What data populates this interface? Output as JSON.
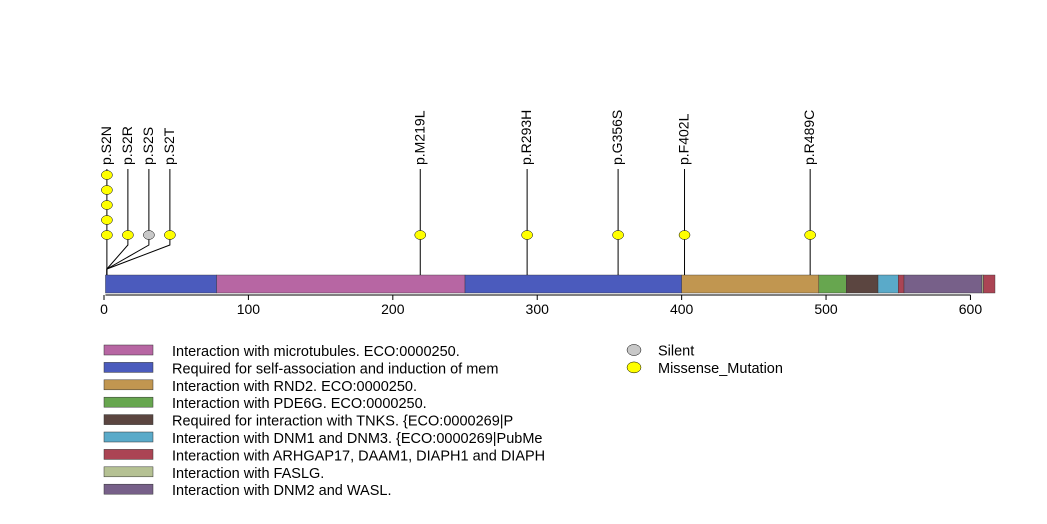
{
  "chart_data": {
    "type": "lollipop",
    "x_axis": {
      "min": 0,
      "max": 617,
      "ticks": [
        0,
        100,
        200,
        300,
        400,
        500,
        600
      ]
    },
    "protein_length": 617,
    "domains": [
      {
        "start": 1,
        "end": 78,
        "color": "#4b5bbd",
        "legend": 1
      },
      {
        "start": 78,
        "end": 250,
        "color": "#b766a3",
        "legend": 0
      },
      {
        "start": 250,
        "end": 400,
        "color": "#4b5bbd",
        "legend": 1
      },
      {
        "start": 400,
        "end": 495,
        "color": "#c19650",
        "legend": 2
      },
      {
        "start": 495,
        "end": 514,
        "color": "#67a64f",
        "legend": 3
      },
      {
        "start": 514,
        "end": 536,
        "color": "#5b4540",
        "legend": 4
      },
      {
        "start": 536,
        "end": 550,
        "color": "#5aaac9",
        "legend": 5
      },
      {
        "start": 550,
        "end": 554,
        "color": "#ab4454",
        "legend": 6
      },
      {
        "start": 554,
        "end": 608,
        "color": "#776089",
        "legend": 8
      },
      {
        "start": 608,
        "end": 609,
        "color": "#b5c193",
        "legend": 7
      },
      {
        "start": 609,
        "end": 617,
        "color": "#ab4454",
        "legend": 6
      }
    ],
    "mutations": [
      {
        "label": "p.S2N",
        "position": 2,
        "count": 5,
        "type": "Missense_Mutation"
      },
      {
        "label": "p.S2R",
        "position": 2,
        "count": 1,
        "type": "Missense_Mutation"
      },
      {
        "label": "p.S2S",
        "position": 2,
        "count": 1,
        "type": "Silent"
      },
      {
        "label": "p.S2T",
        "position": 2,
        "count": 1,
        "type": "Missense_Mutation"
      },
      {
        "label": "p.M219L",
        "position": 219,
        "count": 1,
        "type": "Missense_Mutation"
      },
      {
        "label": "p.R293H",
        "position": 293,
        "count": 1,
        "type": "Missense_Mutation"
      },
      {
        "label": "p.G356S",
        "position": 356,
        "count": 1,
        "type": "Missense_Mutation"
      },
      {
        "label": "p.F402L",
        "position": 402,
        "count": 1,
        "type": "Missense_Mutation"
      },
      {
        "label": "p.R489C",
        "position": 489,
        "count": 1,
        "type": "Missense_Mutation"
      }
    ],
    "domain_legend": [
      {
        "label": "Interaction with microtubules. ECO:0000250.",
        "color": "#b766a3"
      },
      {
        "label": "Required for self-association and induction of mem",
        "color": "#4b5bbd"
      },
      {
        "label": "Interaction with RND2. ECO:0000250.",
        "color": "#c19650"
      },
      {
        "label": "Interaction with PDE6G. ECO:0000250.",
        "color": "#67a64f"
      },
      {
        "label": "Required for interaction with TNKS. {ECO:0000269|P",
        "color": "#5b4540"
      },
      {
        "label": "Interaction with DNM1 and DNM3. {ECO:0000269|PubMe",
        "color": "#5aaac9"
      },
      {
        "label": "Interaction with ARHGAP17, DAAM1, DIAPH1 and DIAPH",
        "color": "#ab4454"
      },
      {
        "label": "Interaction with FASLG.",
        "color": "#b5c193"
      },
      {
        "label": "Interaction with DNM2 and WASL.",
        "color": "#776089"
      }
    ],
    "type_legend": [
      {
        "label": "Silent",
        "color": "#c8c8c8"
      },
      {
        "label": "Missense_Mutation",
        "color": "#ffff00"
      }
    ]
  }
}
